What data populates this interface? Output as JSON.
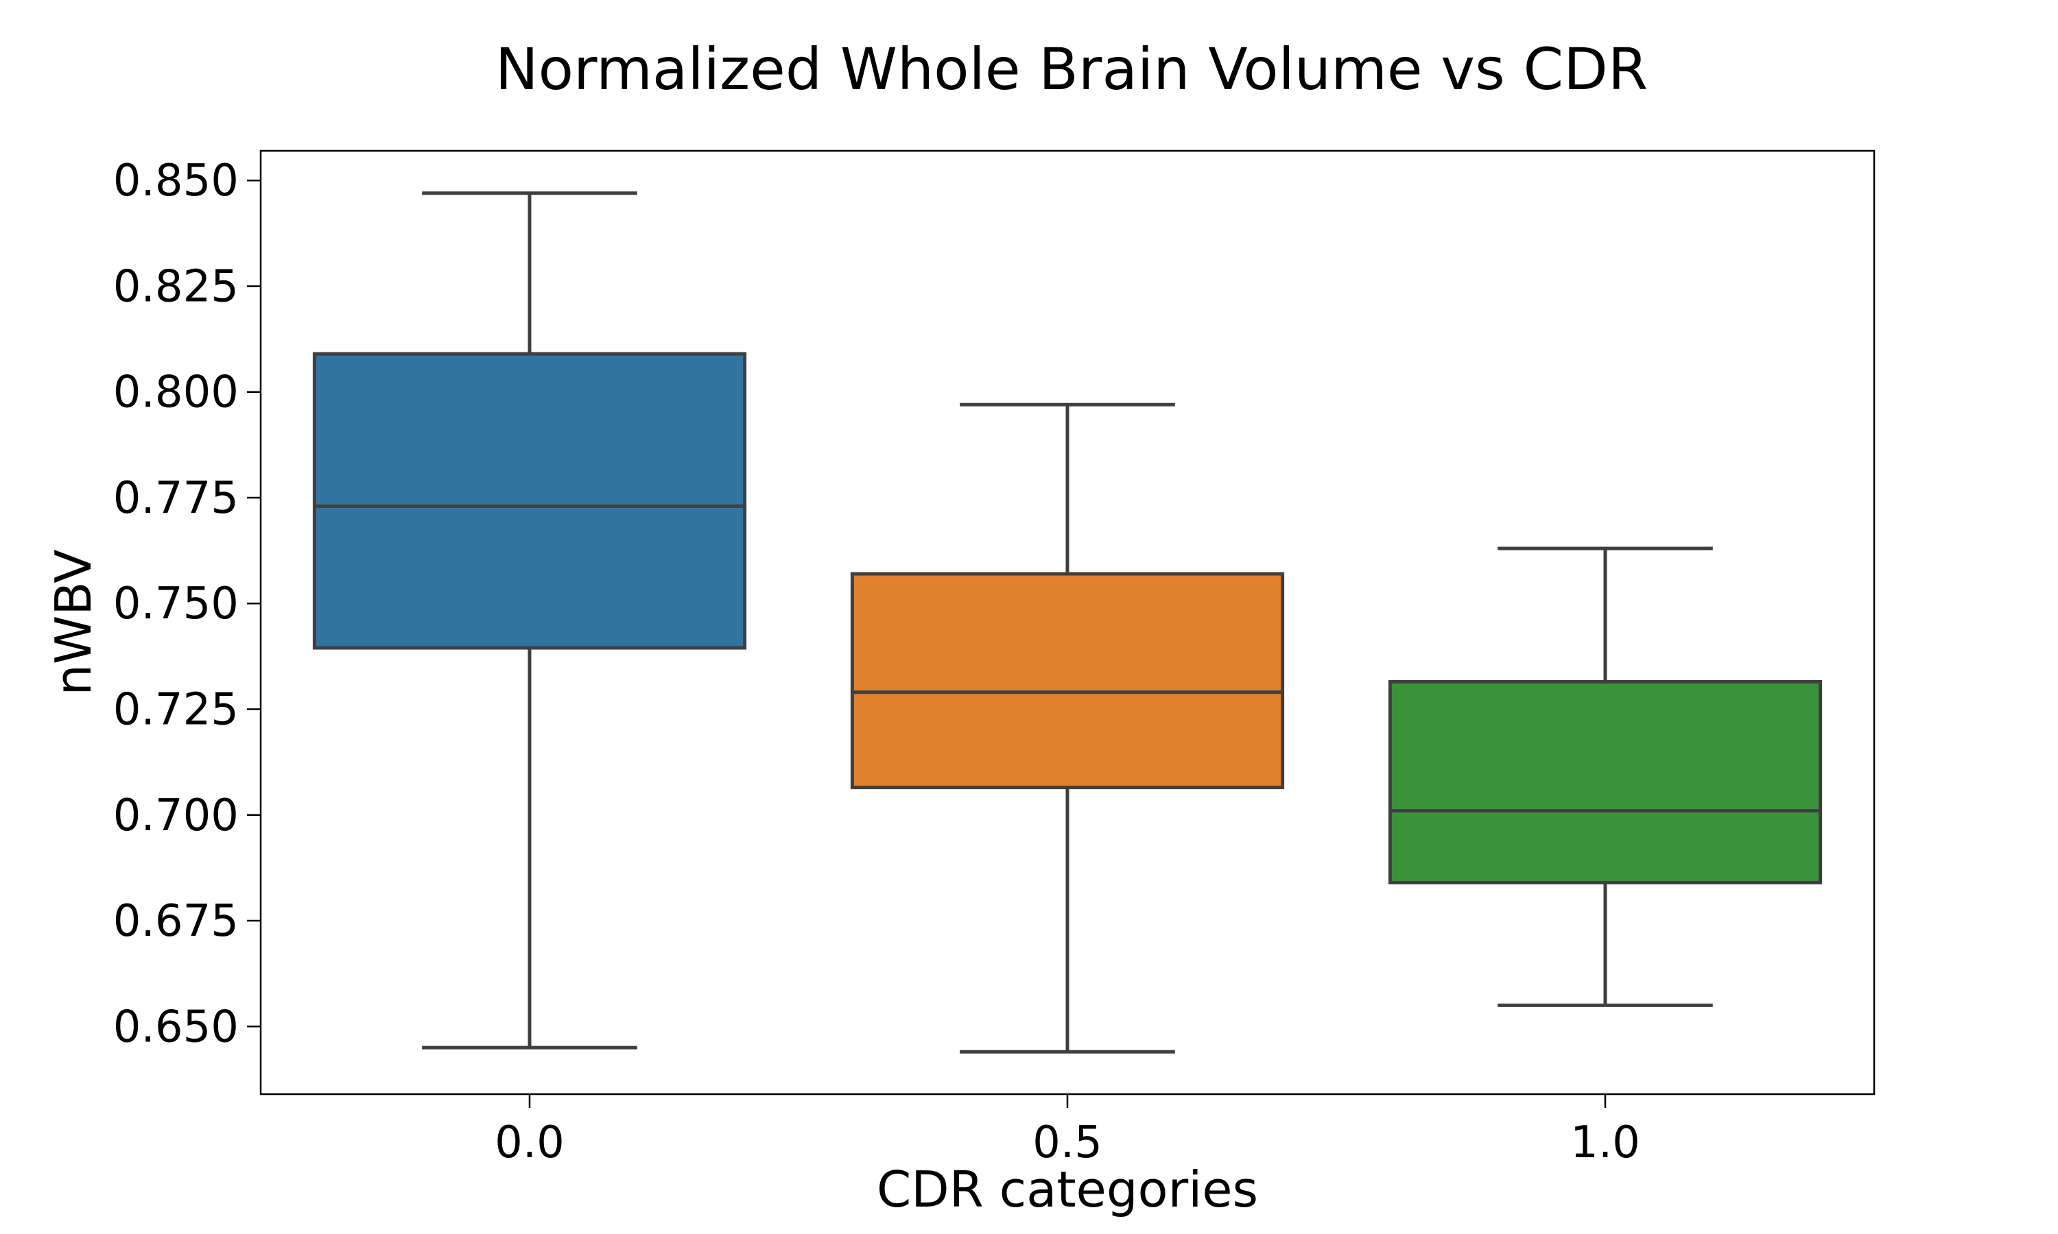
{
  "chart_data": {
    "type": "box",
    "title": "Normalized Whole Brain Volume vs CDR",
    "xlabel": "CDR categories",
    "ylabel": "nWBV",
    "categories": [
      "0.0",
      "0.5",
      "1.0"
    ],
    "colors": [
      "#3274a1",
      "#e1812c",
      "#3a923a"
    ],
    "boxes": [
      {
        "category": "0.0",
        "whisker_low": 0.645,
        "q1": 0.7395,
        "median": 0.773,
        "q3": 0.809,
        "whisker_high": 0.847
      },
      {
        "category": "0.5",
        "whisker_low": 0.644,
        "q1": 0.7065,
        "median": 0.729,
        "q3": 0.757,
        "whisker_high": 0.797
      },
      {
        "category": "1.0",
        "whisker_low": 0.655,
        "q1": 0.684,
        "median": 0.701,
        "q3": 0.7315,
        "whisker_high": 0.763
      }
    ],
    "yticks": [
      "0.650",
      "0.675",
      "0.700",
      "0.725",
      "0.750",
      "0.775",
      "0.800",
      "0.825",
      "0.850"
    ],
    "ylim": [
      0.634,
      0.857
    ],
    "grid": false,
    "legend": "none"
  }
}
